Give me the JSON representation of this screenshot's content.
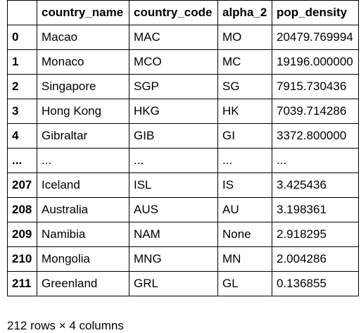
{
  "table": {
    "columns": [
      "",
      "country_name",
      "country_code",
      "alpha_2",
      "pop_density"
    ],
    "rows": [
      [
        "0",
        "Macao",
        "MAC",
        "MO",
        "20479.769994"
      ],
      [
        "1",
        "Monaco",
        "MCO",
        "MC",
        "19196.000000"
      ],
      [
        "2",
        "Singapore",
        "SGP",
        "SG",
        "7915.730436"
      ],
      [
        "3",
        "Hong Kong",
        "HKG",
        "HK",
        "7039.714286"
      ],
      [
        "4",
        "Gibraltar",
        "GIB",
        "GI",
        "3372.800000"
      ],
      [
        "...",
        "...",
        "...",
        "...",
        "..."
      ],
      [
        "207",
        "Iceland",
        "ISL",
        "IS",
        "3.425436"
      ],
      [
        "208",
        "Australia",
        "AUS",
        "AU",
        "3.198361"
      ],
      [
        "209",
        "Namibia",
        "NAM",
        "None",
        "2.918295"
      ],
      [
        "210",
        "Mongolia",
        "MNG",
        "MN",
        "2.004286"
      ],
      [
        "211",
        "Greenland",
        "GRL",
        "GL",
        "0.136855"
      ]
    ]
  },
  "footer": {
    "shape_text": "212 rows × 4 columns"
  }
}
